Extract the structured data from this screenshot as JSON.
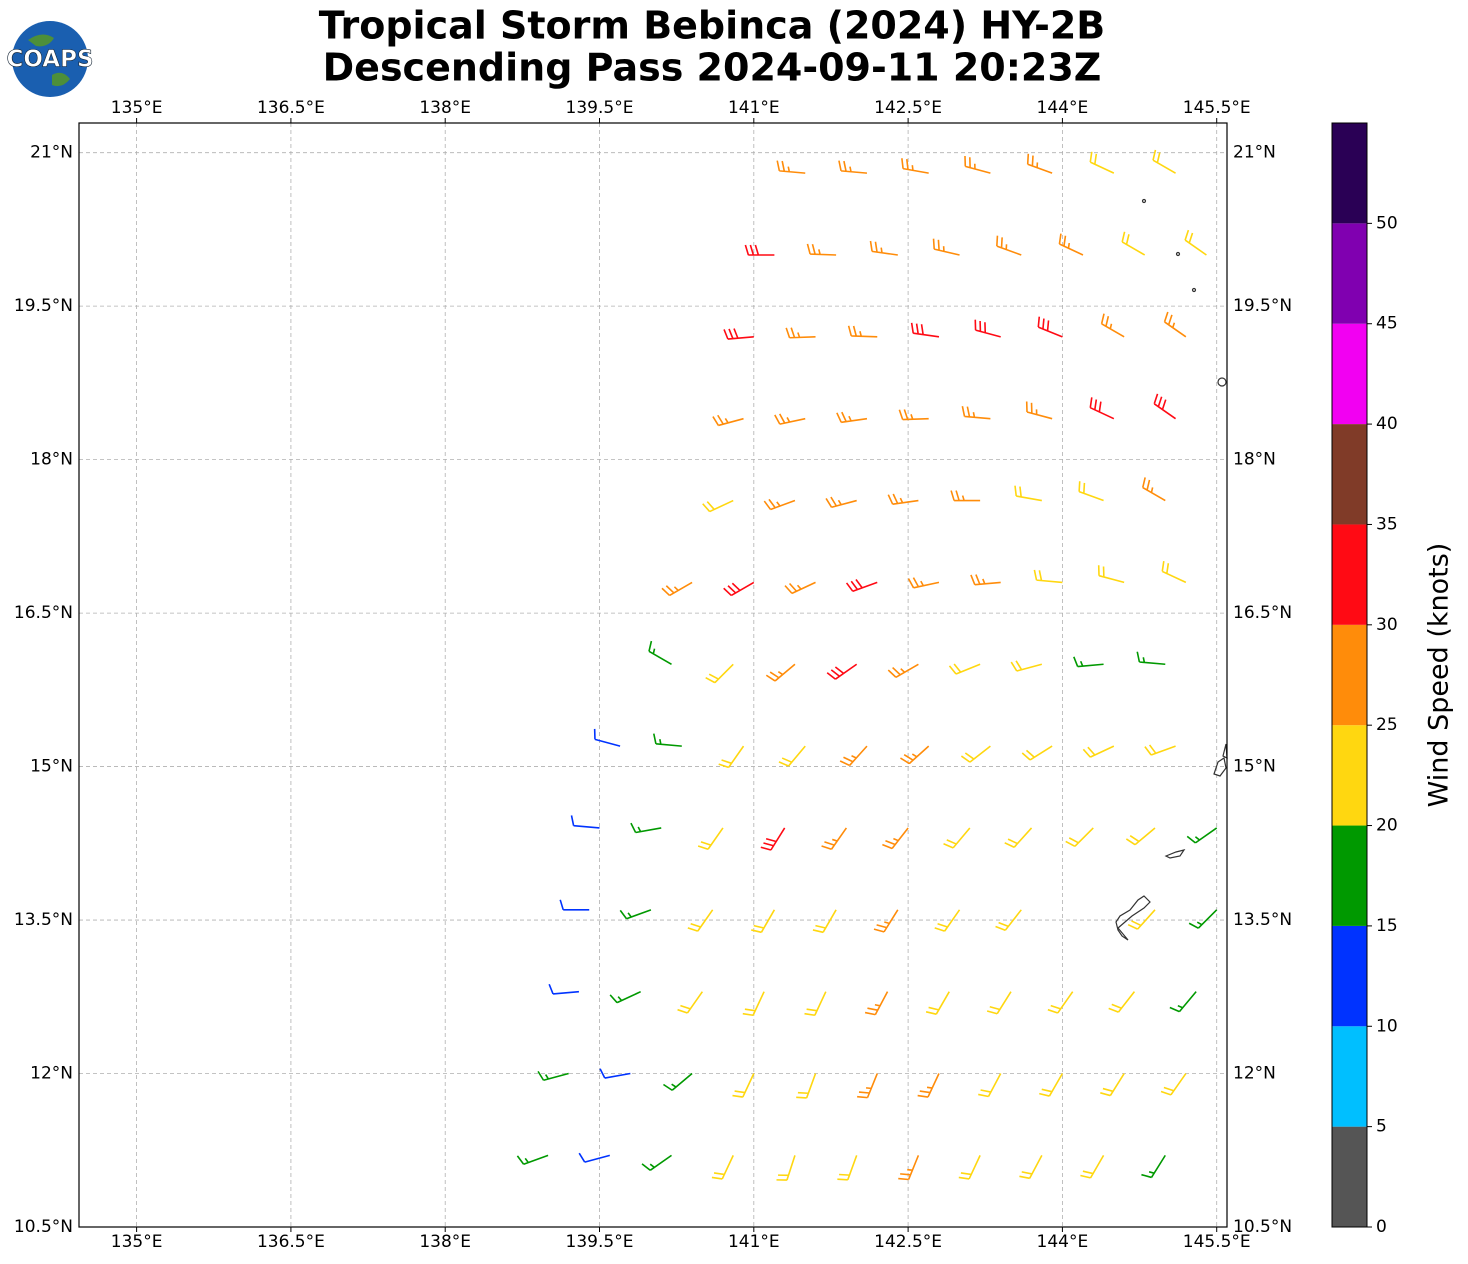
{
  "chart_data": {
    "type": "barbs",
    "title": "Tropical Storm Bebinca (2024) HY-2B",
    "subtitle": "Descending Pass 2024-09-11 20:23Z",
    "logo_text": "COAPS",
    "xlim": [
      134.44,
      145.6
    ],
    "ylim": [
      10.5,
      21.29
    ],
    "xticks": [
      {
        "value": 135,
        "label": "135°E"
      },
      {
        "value": 136.5,
        "label": "136.5°E"
      },
      {
        "value": 138,
        "label": "138°E"
      },
      {
        "value": 139.5,
        "label": "139.5°E"
      },
      {
        "value": 141,
        "label": "141°E"
      },
      {
        "value": 142.5,
        "label": "142.5°E"
      },
      {
        "value": 144,
        "label": "144°E"
      },
      {
        "value": 145.5,
        "label": "145.5°E"
      }
    ],
    "yticks": [
      {
        "value": 10.5,
        "label": "10.5°N"
      },
      {
        "value": 12,
        "label": "12°N"
      },
      {
        "value": 13.5,
        "label": "13.5°N"
      },
      {
        "value": 15,
        "label": "15°N"
      },
      {
        "value": 16.5,
        "label": "16.5°N"
      },
      {
        "value": 18,
        "label": "18°N"
      },
      {
        "value": 19.5,
        "label": "19.5°N"
      },
      {
        "value": 21,
        "label": "21°N"
      }
    ],
    "grid": true,
    "colorbar": {
      "label": "Wind Speed (knots)",
      "bounds": [
        0,
        5,
        10,
        15,
        20,
        25,
        30,
        35,
        40,
        45,
        50,
        55
      ],
      "colors": [
        "#555555",
        "#00bfff",
        "#0033ff",
        "#009900",
        "#ffd710",
        "#ff8c0a",
        "#ff0a14",
        "#803b28",
        "#f200f2",
        "#8000b0",
        "#2a0055"
      ],
      "ticks": [
        0,
        5,
        10,
        15,
        20,
        25,
        30,
        35,
        40,
        45,
        50
      ]
    },
    "rows": [
      {
        "lat": 20.8,
        "lon": [
          141.5,
          142.1,
          142.7,
          143.3,
          143.9,
          144.5,
          145.1
        ],
        "speed": [
          27,
          28,
          26,
          27,
          26,
          24,
          23
        ],
        "direction": [
          275,
          275,
          280,
          285,
          290,
          295,
          300
        ]
      },
      {
        "lat": 20.0,
        "lon": [
          141.2,
          141.8,
          142.4,
          143.0,
          143.6,
          144.2,
          144.8,
          145.4
        ],
        "speed": [
          31,
          28,
          27,
          26,
          27,
          26,
          24,
          23
        ],
        "direction": [
          270,
          272,
          278,
          283,
          290,
          295,
          300,
          305
        ]
      },
      {
        "lat": 19.2,
        "lon": [
          141.0,
          141.6,
          142.2,
          142.8,
          143.4,
          144.0,
          144.6,
          145.2
        ],
        "speed": [
          31,
          28,
          27,
          31,
          32,
          31,
          29,
          26
        ],
        "direction": [
          265,
          268,
          272,
          278,
          285,
          292,
          300,
          305
        ]
      },
      {
        "lat": 18.4,
        "lon": [
          140.9,
          141.5,
          142.1,
          142.7,
          143.3,
          143.9,
          144.5,
          145.1
        ],
        "speed": [
          27,
          28,
          27,
          27,
          28,
          29,
          32,
          33
        ],
        "direction": [
          255,
          258,
          262,
          268,
          275,
          285,
          295,
          305
        ]
      },
      {
        "lat": 17.6,
        "lon": [
          140.8,
          141.4,
          142.0,
          142.6,
          143.2,
          143.8,
          144.4,
          145.0
        ],
        "speed": [
          24,
          27,
          28,
          27,
          26,
          24,
          23,
          27
        ],
        "direction": [
          245,
          250,
          255,
          262,
          270,
          280,
          290,
          300
        ]
      },
      {
        "lat": 16.8,
        "lon": [
          140.4,
          141.0,
          141.6,
          142.2,
          142.8,
          143.4,
          144.0,
          144.6,
          145.2
        ],
        "speed": [
          28,
          32,
          29,
          33,
          27,
          25,
          23,
          22,
          21
        ],
        "direction": [
          240,
          240,
          245,
          250,
          258,
          265,
          275,
          285,
          295
        ]
      },
      {
        "lat": 16.0,
        "lon": [
          140.2,
          140.8,
          141.4,
          142.0,
          142.6,
          143.2,
          143.8,
          144.4,
          145.0
        ],
        "speed": [
          18,
          23,
          25,
          31,
          27,
          24,
          22,
          19,
          18
        ],
        "direction": [
          300,
          225,
          230,
          235,
          240,
          248,
          255,
          265,
          275
        ]
      },
      {
        "lat": 15.2,
        "lon": [
          139.7,
          140.3,
          140.9,
          141.5,
          142.1,
          142.7,
          143.3,
          143.9,
          144.5,
          145.1
        ],
        "speed": [
          12,
          18,
          23,
          24,
          27,
          27,
          24,
          22,
          22,
          21
        ],
        "direction": [
          285,
          275,
          215,
          220,
          222,
          228,
          232,
          238,
          245,
          250
        ]
      },
      {
        "lat": 14.4,
        "lon": [
          139.5,
          140.1,
          140.7,
          141.3,
          141.9,
          142.5,
          143.1,
          143.7,
          144.3,
          144.9,
          145.5
        ],
        "speed": [
          13,
          17,
          20,
          31,
          27,
          26,
          24,
          23,
          22,
          21,
          18
        ],
        "direction": [
          275,
          260,
          215,
          212,
          215,
          218,
          220,
          222,
          225,
          230,
          235
        ]
      },
      {
        "lat": 13.6,
        "lon": [
          139.4,
          140.0,
          140.6,
          141.2,
          141.8,
          142.4,
          143.0,
          143.6,
          144.9,
          145.5
        ],
        "speed": [
          13,
          18,
          22,
          23,
          24,
          27,
          24,
          23,
          22,
          18
        ],
        "direction": [
          270,
          250,
          215,
          210,
          210,
          212,
          215,
          218,
          222,
          225
        ]
      },
      {
        "lat": 12.8,
        "lon": [
          139.3,
          139.9,
          140.5,
          141.1,
          141.7,
          142.3,
          142.9,
          143.5,
          144.1,
          144.7,
          145.3
        ],
        "speed": [
          12,
          17,
          21,
          23,
          24,
          27,
          24,
          23,
          22,
          22,
          18
        ],
        "direction": [
          265,
          245,
          215,
          205,
          205,
          208,
          210,
          212,
          215,
          218,
          220
        ]
      },
      {
        "lat": 12.0,
        "lon": [
          139.2,
          139.8,
          140.4,
          141.0,
          141.6,
          142.2,
          142.8,
          143.4,
          144.0,
          144.6,
          145.2
        ],
        "speed": [
          17,
          13,
          19,
          22,
          23,
          26,
          27,
          24,
          23,
          22,
          21
        ],
        "direction": [
          255,
          260,
          230,
          205,
          200,
          202,
          205,
          208,
          210,
          212,
          215
        ]
      },
      {
        "lat": 11.2,
        "lon": [
          139.0,
          139.6,
          140.2,
          140.8,
          141.4,
          142.0,
          142.6,
          143.2,
          143.8,
          144.4,
          145.0
        ],
        "speed": [
          16,
          13,
          18,
          21,
          22,
          23,
          27,
          24,
          23,
          22,
          18
        ],
        "direction": [
          250,
          255,
          235,
          205,
          198,
          200,
          202,
          205,
          208,
          210,
          212
        ]
      }
    ]
  }
}
